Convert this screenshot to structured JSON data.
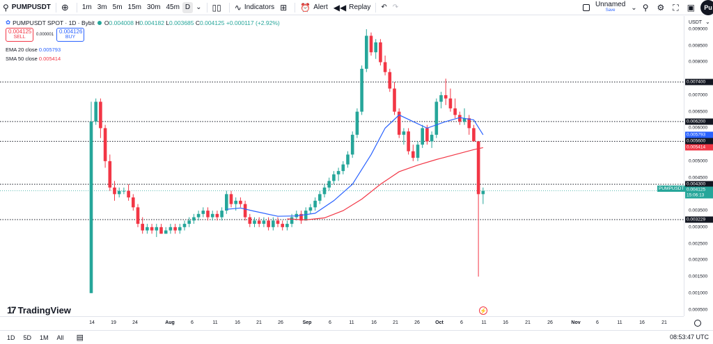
{
  "toolbar": {
    "symbol": "PUMPUSDT",
    "add_icon": "plus-circle-icon",
    "timeframes": [
      "1m",
      "3m",
      "5m",
      "15m",
      "30m",
      "45m",
      "D"
    ],
    "active_timeframe": "D",
    "indicators_label": "Indicators",
    "alert_label": "Alert",
    "replay_label": "Replay",
    "layout_name": "Unnamed",
    "layout_status": "Save",
    "avatar_text": "Pu"
  },
  "legend": {
    "title": "PUMPUSDT SPOT · 1D · Bybit",
    "o_label": "O",
    "o": "0.004008",
    "h_label": "H",
    "h": "0.004182",
    "l_label": "L",
    "l": "0.003685",
    "c_label": "C",
    "c": "0.004125",
    "change": "+0.000117 (+2.92%)",
    "sell_price": "0.004125",
    "sell_label": "SELL",
    "spread": "0.000001",
    "buy_price": "0.004126",
    "buy_label": "BUY",
    "ema_label": "EMA 20 close",
    "ema_value": "0.005793",
    "sma_label": "SMA 50 close",
    "sma_value": "0.005414"
  },
  "price_axis": {
    "currency": "USDT",
    "ticks": [
      "0.009000",
      "0.008500",
      "0.008000",
      "0.007000",
      "0.006500",
      "0.006000",
      "0.005000",
      "0.004500",
      "0.003500",
      "0.003000",
      "0.002500",
      "0.002000",
      "0.001500",
      "0.001000",
      "0.000500"
    ],
    "tick_values": [
      0.009,
      0.0085,
      0.008,
      0.007,
      0.0065,
      0.006,
      0.005,
      0.0045,
      0.0035,
      0.003,
      0.0025,
      0.002,
      0.0015,
      0.001,
      0.0005
    ],
    "tags": [
      {
        "text": "0.007400",
        "value": 0.0074,
        "color": "#131722"
      },
      {
        "text": "0.006200",
        "value": 0.0062,
        "color": "#131722"
      },
      {
        "text": "0.005793",
        "value": 0.005793,
        "color": "#2962ff"
      },
      {
        "text": "0.005600",
        "value": 0.0056,
        "color": "#131722"
      },
      {
        "text": "0.005414",
        "value": 0.005414,
        "color": "#f23645"
      },
      {
        "text": "0.004300",
        "value": 0.0043,
        "color": "#131722"
      },
      {
        "text": "0.004125",
        "value": 0.004125,
        "color": "#26a69a"
      },
      {
        "text": "15:06:13",
        "value": 0.00397,
        "color": "#26a69a"
      },
      {
        "text": "0.003229",
        "value": 0.003229,
        "color": "#131722"
      }
    ],
    "last_symbol_tag": "PUMPUSDT"
  },
  "time_axis": {
    "labels": [
      "14",
      "19",
      "24",
      "Aug",
      "6",
      "11",
      "16",
      "21",
      "26",
      "Sep",
      "6",
      "11",
      "16",
      "21",
      "26",
      "Oct",
      "6",
      "11",
      "16",
      "21",
      "26",
      "Nov",
      "6",
      "11",
      "16",
      "21"
    ]
  },
  "bottombar": {
    "ranges": [
      "1D",
      "5D",
      "1M",
      "All"
    ],
    "calendar_icon": "calendar-range-icon",
    "time": "08:53:47 UTC"
  },
  "brand": "TradingView",
  "colors": {
    "up": "#26a69a",
    "down": "#f23645",
    "ema": "#2962ff",
    "sma": "#f23645"
  },
  "chart_data": {
    "type": "candlestick",
    "title": "PUMPUSDT SPOT · 1D · Bybit",
    "yrange": [
      0.0003,
      0.0094
    ],
    "horizontal_levels": [
      0.0074,
      0.0062,
      0.0056,
      0.0043,
      0.003229
    ],
    "candles": [
      [
        0.001,
        0.0068,
        0.001,
        0.0062
      ],
      [
        0.0062,
        0.0069,
        0.0061,
        0.0068
      ],
      [
        0.0068,
        0.0069,
        0.0057,
        0.006
      ],
      [
        0.006,
        0.0061,
        0.0048,
        0.005
      ],
      [
        0.005,
        0.0052,
        0.0041,
        0.0042
      ],
      [
        0.0042,
        0.0044,
        0.0038,
        0.004
      ],
      [
        0.004,
        0.0042,
        0.0039,
        0.0041
      ],
      [
        0.0041,
        0.0042,
        0.004,
        0.0041
      ],
      [
        0.0041,
        0.0043,
        0.0038,
        0.0039
      ],
      [
        0.0039,
        0.004,
        0.0035,
        0.0036
      ],
      [
        0.0036,
        0.0037,
        0.003,
        0.0031
      ],
      [
        0.0031,
        0.0033,
        0.0028,
        0.0029
      ],
      [
        0.0029,
        0.0031,
        0.0028,
        0.003
      ],
      [
        0.003,
        0.0031,
        0.0028,
        0.0029
      ],
      [
        0.0029,
        0.0031,
        0.0027,
        0.003
      ],
      [
        0.003,
        0.0031,
        0.0028,
        0.0028
      ],
      [
        0.0028,
        0.003,
        0.0028,
        0.0029
      ],
      [
        0.0029,
        0.0031,
        0.0028,
        0.003
      ],
      [
        0.003,
        0.0031,
        0.0028,
        0.0029
      ],
      [
        0.0029,
        0.0031,
        0.0028,
        0.003
      ],
      [
        0.003,
        0.0032,
        0.0029,
        0.0031
      ],
      [
        0.0031,
        0.0033,
        0.003,
        0.0032
      ],
      [
        0.0032,
        0.0034,
        0.0031,
        0.0033
      ],
      [
        0.0033,
        0.0035,
        0.0032,
        0.0034
      ],
      [
        0.0034,
        0.0036,
        0.0033,
        0.0035
      ],
      [
        0.0035,
        0.0036,
        0.0032,
        0.0033
      ],
      [
        0.0033,
        0.0035,
        0.0032,
        0.0034
      ],
      [
        0.0034,
        0.0035,
        0.0032,
        0.0033
      ],
      [
        0.0033,
        0.0036,
        0.0032,
        0.0035
      ],
      [
        0.0035,
        0.0041,
        0.0034,
        0.004
      ],
      [
        0.004,
        0.0041,
        0.0036,
        0.0037
      ],
      [
        0.0037,
        0.0039,
        0.0035,
        0.0038
      ],
      [
        0.0038,
        0.0039,
        0.0036,
        0.0037
      ],
      [
        0.0037,
        0.0038,
        0.0032,
        0.0033
      ],
      [
        0.0033,
        0.0034,
        0.003,
        0.0031
      ],
      [
        0.0031,
        0.0033,
        0.003,
        0.0032
      ],
      [
        0.0032,
        0.0033,
        0.003,
        0.0031
      ],
      [
        0.0031,
        0.0033,
        0.003,
        0.0032
      ],
      [
        0.0032,
        0.0033,
        0.0029,
        0.003
      ],
      [
        0.003,
        0.0033,
        0.0029,
        0.0032
      ],
      [
        0.0032,
        0.0033,
        0.003,
        0.0031
      ],
      [
        0.0031,
        0.0032,
        0.0029,
        0.003
      ],
      [
        0.003,
        0.0032,
        0.0029,
        0.0031
      ],
      [
        0.0031,
        0.0034,
        0.003,
        0.0033
      ],
      [
        0.0033,
        0.0035,
        0.0032,
        0.0034
      ],
      [
        0.0034,
        0.0035,
        0.0031,
        0.0032
      ],
      [
        0.0032,
        0.0036,
        0.0032,
        0.0035
      ],
      [
        0.0035,
        0.0037,
        0.0034,
        0.0036
      ],
      [
        0.0036,
        0.0039,
        0.0035,
        0.0038
      ],
      [
        0.0038,
        0.0041,
        0.0037,
        0.004
      ],
      [
        0.004,
        0.0043,
        0.0039,
        0.0042
      ],
      [
        0.0042,
        0.0045,
        0.0041,
        0.0044
      ],
      [
        0.0044,
        0.0047,
        0.0043,
        0.0046
      ],
      [
        0.0046,
        0.0048,
        0.0044,
        0.0047
      ],
      [
        0.0047,
        0.005,
        0.0046,
        0.0049
      ],
      [
        0.0049,
        0.0053,
        0.0048,
        0.0052
      ],
      [
        0.0052,
        0.0059,
        0.0051,
        0.0058
      ],
      [
        0.0058,
        0.0066,
        0.0057,
        0.0065
      ],
      [
        0.0065,
        0.0079,
        0.0064,
        0.0078
      ],
      [
        0.0078,
        0.009,
        0.0077,
        0.0088
      ],
      [
        0.0088,
        0.0089,
        0.0082,
        0.0083
      ],
      [
        0.0083,
        0.0087,
        0.0081,
        0.0086
      ],
      [
        0.0086,
        0.0087,
        0.0079,
        0.008
      ],
      [
        0.008,
        0.0082,
        0.0076,
        0.0077
      ],
      [
        0.0077,
        0.0078,
        0.0071,
        0.0072
      ],
      [
        0.0072,
        0.0074,
        0.0064,
        0.0065
      ],
      [
        0.0065,
        0.0066,
        0.0057,
        0.0058
      ],
      [
        0.0058,
        0.006,
        0.0055,
        0.0059
      ],
      [
        0.0059,
        0.006,
        0.0052,
        0.0053
      ],
      [
        0.0053,
        0.0055,
        0.005,
        0.0051
      ],
      [
        0.0051,
        0.0056,
        0.005,
        0.0055
      ],
      [
        0.0055,
        0.0061,
        0.0054,
        0.006
      ],
      [
        0.006,
        0.0061,
        0.0055,
        0.0056
      ],
      [
        0.0056,
        0.0059,
        0.0054,
        0.0058
      ],
      [
        0.0058,
        0.0069,
        0.0057,
        0.0068
      ],
      [
        0.0068,
        0.0071,
        0.0066,
        0.007
      ],
      [
        0.007,
        0.0075,
        0.0067,
        0.0069
      ],
      [
        0.0069,
        0.0072,
        0.0065,
        0.0066
      ],
      [
        0.0066,
        0.0069,
        0.0063,
        0.0064
      ],
      [
        0.0064,
        0.0065,
        0.0061,
        0.0062
      ],
      [
        0.0062,
        0.0066,
        0.0061,
        0.0063
      ],
      [
        0.0063,
        0.0064,
        0.0058,
        0.006
      ],
      [
        0.006,
        0.0061,
        0.0056,
        0.0056
      ],
      [
        0.0056,
        0.0056,
        0.0015,
        0.004
      ],
      [
        0.004,
        0.0042,
        0.0037,
        0.0041
      ]
    ],
    "ema20": [
      [
        29,
        0.00354
      ],
      [
        32,
        0.00358
      ],
      [
        35,
        0.00348
      ],
      [
        40,
        0.00333
      ],
      [
        44,
        0.00334
      ],
      [
        48,
        0.00342
      ],
      [
        52,
        0.0038
      ],
      [
        56,
        0.0043
      ],
      [
        60,
        0.0052
      ],
      [
        63,
        0.006
      ],
      [
        66,
        0.0064
      ],
      [
        69,
        0.0062
      ],
      [
        72,
        0.006
      ],
      [
        76,
        0.0062
      ],
      [
        79,
        0.00632
      ],
      [
        82,
        0.00625
      ],
      [
        84,
        0.0058
      ]
    ],
    "sma50": [
      [
        42,
        0.00325
      ],
      [
        46,
        0.00322
      ],
      [
        50,
        0.00328
      ],
      [
        54,
        0.0035
      ],
      [
        58,
        0.00385
      ],
      [
        62,
        0.0043
      ],
      [
        66,
        0.00468
      ],
      [
        70,
        0.00488
      ],
      [
        74,
        0.00505
      ],
      [
        78,
        0.0052
      ],
      [
        82,
        0.00535
      ],
      [
        84,
        0.00541
      ]
    ]
  }
}
